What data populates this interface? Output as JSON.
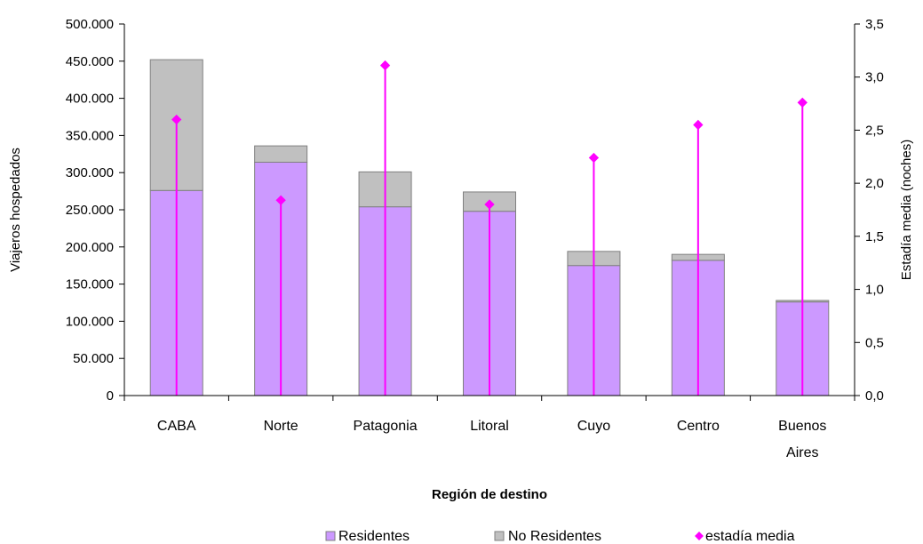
{
  "chart_data": {
    "type": "bar",
    "stacked": true,
    "categories": [
      [
        "CABA"
      ],
      [
        "Norte"
      ],
      [
        "Patagonia"
      ],
      [
        "Litoral"
      ],
      [
        "Cuyo"
      ],
      [
        "Centro"
      ],
      [
        "Buenos",
        "Aires"
      ]
    ],
    "series": [
      {
        "name": "Residentes",
        "type": "bar",
        "axis": "left",
        "color": "#cc99ff",
        "values": [
          276000,
          314000,
          254000,
          248000,
          175000,
          182000,
          126000
        ]
      },
      {
        "name": "No Residentes",
        "type": "bar",
        "axis": "left",
        "color": "#c0c0c0",
        "values": [
          176000,
          22000,
          47000,
          26000,
          19000,
          8000,
          2000
        ]
      },
      {
        "name": "estadía media",
        "type": "scatter-stem",
        "axis": "right",
        "color": "#ff00ff",
        "values": [
          2.6,
          1.84,
          3.11,
          1.8,
          2.24,
          2.55,
          2.76
        ]
      }
    ],
    "xlabel": "Región de destino",
    "ylabel": "Viajeros hospedados",
    "y2label": "Estadía media (noches)",
    "ylim": [
      0,
      500000
    ],
    "y2lim": [
      0,
      3.5
    ],
    "yticks": [
      "0",
      "50.000",
      "100.000",
      "150.000",
      "200.000",
      "250.000",
      "300.000",
      "350.000",
      "400.000",
      "450.000",
      "500.000"
    ],
    "y2ticks": [
      "0,0",
      "0,5",
      "1,0",
      "1,5",
      "2,0",
      "2,5",
      "3,0",
      "3,5"
    ],
    "legend_position": "bottom",
    "grid": false
  }
}
